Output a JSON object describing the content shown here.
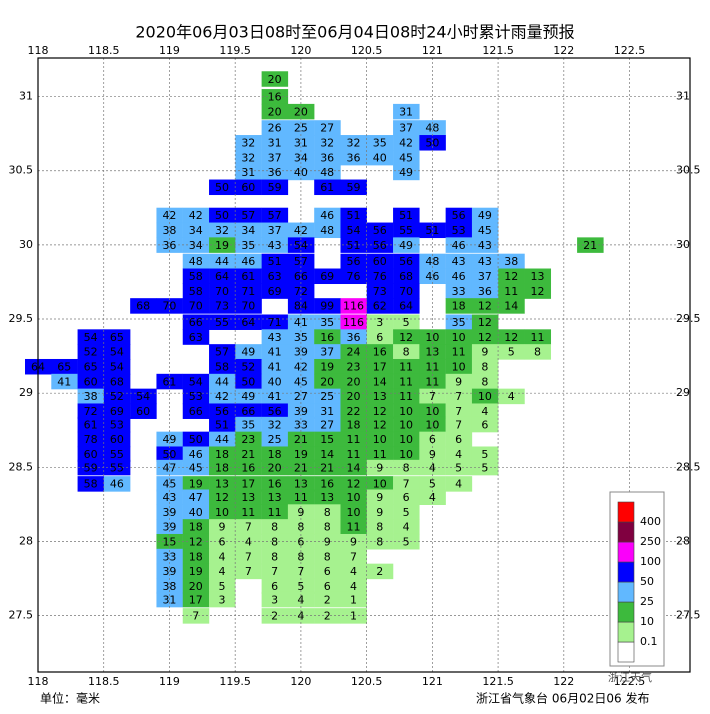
{
  "chart_data": {
    "type": "map",
    "title": "2020年06月03日08时至06月04日08时24小时累计雨量预报",
    "xlim": [
      118,
      122.96
    ],
    "ylim": [
      27.12,
      31.26
    ],
    "xticks": [
      118,
      118.5,
      119,
      119.5,
      120,
      120.5,
      121,
      121.5,
      122,
      122.5
    ],
    "yticks": [
      27.5,
      28,
      28.5,
      29,
      29.5,
      30,
      30.5,
      31
    ],
    "grid": true,
    "legend": {
      "levels": [
        0.1,
        10,
        25,
        50,
        100,
        250,
        400
      ],
      "colors": [
        "#ffffff",
        "#a6f28f",
        "#3dba3d",
        "#61b8ff",
        "#0000fe",
        "#fa00fa",
        "#800040",
        "#ff0000"
      ]
    },
    "grid_lon": [
      118,
      118.2,
      118.4,
      118.6,
      118.8,
      119,
      119.2,
      119.4,
      119.6,
      119.8,
      120,
      120.2,
      120.4,
      120.6,
      120.8,
      121,
      121.2,
      121.4,
      121.6,
      121.8,
      122,
      122.2
    ],
    "rows": [
      {
        "lat": 31.12,
        "values": [
          null,
          null,
          null,
          null,
          null,
          null,
          null,
          null,
          null,
          20,
          null,
          null,
          null,
          null,
          null,
          null,
          null,
          null,
          null,
          null,
          null,
          null
        ]
      },
      {
        "lat": 31.0,
        "values": [
          null,
          null,
          null,
          null,
          null,
          null,
          null,
          null,
          null,
          16,
          null,
          null,
          null,
          null,
          null,
          null,
          null,
          null,
          null,
          null,
          null,
          null
        ]
      },
      {
        "lat": 30.9,
        "values": [
          null,
          null,
          null,
          null,
          null,
          null,
          null,
          null,
          null,
          20,
          20,
          null,
          null,
          null,
          31,
          null,
          null,
          null,
          null,
          null,
          null,
          null
        ]
      },
      {
        "lat": 30.79,
        "values": [
          null,
          null,
          null,
          null,
          null,
          null,
          null,
          null,
          null,
          26,
          25,
          27,
          null,
          null,
          37,
          48,
          null,
          null,
          null,
          null,
          null,
          null
        ]
      },
      {
        "lat": 30.69,
        "values": [
          null,
          null,
          null,
          null,
          null,
          null,
          null,
          null,
          32,
          31,
          31,
          32,
          32,
          35,
          42,
          50,
          null,
          null,
          null,
          null,
          null,
          null
        ]
      },
      {
        "lat": 30.59,
        "values": [
          null,
          null,
          null,
          null,
          null,
          null,
          null,
          null,
          32,
          37,
          34,
          36,
          36,
          40,
          45,
          null,
          null,
          null,
          null,
          null,
          null,
          null
        ]
      },
      {
        "lat": 30.49,
        "values": [
          null,
          null,
          null,
          null,
          null,
          null,
          null,
          null,
          31,
          36,
          40,
          48,
          null,
          null,
          49,
          null,
          null,
          null,
          null,
          null,
          null,
          null
        ]
      },
      {
        "lat": 30.39,
        "values": [
          null,
          null,
          null,
          null,
          null,
          null,
          null,
          50,
          60,
          59,
          null,
          61,
          59,
          null,
          null,
          null,
          null,
          null,
          null,
          null,
          null,
          null
        ]
      },
      {
        "lat": 30.2,
        "values": [
          null,
          null,
          null,
          null,
          null,
          42,
          42,
          50,
          57,
          57,
          null,
          46,
          51,
          null,
          51,
          null,
          56,
          49,
          null,
          null,
          null,
          null
        ]
      },
      {
        "lat": 30.1,
        "values": [
          null,
          null,
          null,
          null,
          null,
          38,
          34,
          32,
          34,
          37,
          42,
          48,
          54,
          56,
          55,
          51,
          53,
          45,
          null,
          null,
          null,
          null
        ]
      },
      {
        "lat": 30.0,
        "values": [
          null,
          null,
          null,
          null,
          null,
          36,
          34,
          19,
          35,
          43,
          54,
          null,
          51,
          56,
          49,
          null,
          46,
          43,
          null,
          null,
          null,
          21
        ]
      },
      {
        "lat": 29.89,
        "values": [
          null,
          null,
          null,
          null,
          null,
          null,
          48,
          44,
          46,
          51,
          57,
          null,
          56,
          60,
          56,
          48,
          43,
          43,
          38,
          null,
          null,
          null
        ]
      },
      {
        "lat": 29.79,
        "values": [
          null,
          null,
          null,
          null,
          null,
          null,
          58,
          64,
          61,
          63,
          66,
          69,
          76,
          76,
          68,
          46,
          46,
          37,
          12,
          13,
          null,
          null
        ]
      },
      {
        "lat": 29.69,
        "values": [
          null,
          null,
          null,
          null,
          null,
          null,
          58,
          70,
          71,
          69,
          72,
          null,
          null,
          73,
          70,
          null,
          33,
          36,
          11,
          12,
          null,
          null
        ]
      },
      {
        "lat": 29.59,
        "values": [
          null,
          null,
          null,
          null,
          68,
          70,
          70,
          73,
          70,
          null,
          84,
          99,
          116,
          62,
          64,
          null,
          18,
          12,
          14,
          null,
          null,
          null
        ]
      },
      {
        "lat": 29.48,
        "values": [
          null,
          null,
          null,
          null,
          null,
          null,
          66,
          55,
          64,
          71,
          41,
          35,
          116,
          3,
          5,
          null,
          35,
          12,
          null,
          null,
          null,
          null
        ]
      },
      {
        "lat": 29.38,
        "values": [
          null,
          null,
          54,
          65,
          null,
          null,
          63,
          null,
          null,
          43,
          35,
          16,
          36,
          6,
          12,
          10,
          10,
          12,
          12,
          11,
          null,
          null
        ]
      },
      {
        "lat": 29.28,
        "values": [
          null,
          null,
          52,
          54,
          null,
          null,
          null,
          57,
          49,
          41,
          39,
          37,
          24,
          16,
          8,
          13,
          11,
          9,
          5,
          8,
          null,
          null
        ]
      },
      {
        "lat": 29.18,
        "values": [
          64,
          65,
          65,
          54,
          null,
          null,
          null,
          58,
          52,
          41,
          42,
          19,
          23,
          17,
          11,
          11,
          10,
          8,
          null,
          null,
          null,
          null
        ]
      },
      {
        "lat": 29.08,
        "values": [
          null,
          41,
          60,
          68,
          null,
          61,
          54,
          44,
          50,
          40,
          45,
          20,
          20,
          14,
          11,
          11,
          9,
          8,
          null,
          null,
          null,
          null
        ]
      },
      {
        "lat": 28.98,
        "values": [
          null,
          null,
          38,
          52,
          54,
          null,
          53,
          42,
          49,
          41,
          27,
          25,
          20,
          13,
          11,
          7,
          7,
          10,
          4,
          null,
          null,
          null
        ]
      },
      {
        "lat": 28.88,
        "values": [
          null,
          null,
          72,
          69,
          60,
          null,
          66,
          56,
          66,
          56,
          39,
          31,
          22,
          12,
          10,
          10,
          7,
          4,
          null,
          null,
          null,
          null
        ]
      },
      {
        "lat": 28.79,
        "values": [
          null,
          null,
          61,
          53,
          null,
          null,
          null,
          51,
          35,
          32,
          33,
          27,
          18,
          12,
          10,
          10,
          7,
          6,
          null,
          null,
          null,
          null
        ]
      },
      {
        "lat": 28.69,
        "values": [
          null,
          null,
          78,
          60,
          null,
          49,
          50,
          44,
          23,
          25,
          21,
          15,
          11,
          10,
          10,
          6,
          6,
          null,
          null,
          null,
          null,
          null
        ]
      },
      {
        "lat": 28.59,
        "values": [
          null,
          null,
          60,
          55,
          null,
          50,
          46,
          18,
          21,
          18,
          19,
          14,
          11,
          11,
          10,
          9,
          4,
          5,
          null,
          null,
          null,
          null
        ]
      },
      {
        "lat": 28.5,
        "values": [
          null,
          null,
          59,
          55,
          null,
          47,
          45,
          18,
          16,
          20,
          21,
          21,
          14,
          9,
          8,
          4,
          5,
          5,
          null,
          null,
          null,
          null
        ]
      },
      {
        "lat": 28.39,
        "values": [
          null,
          null,
          58,
          46,
          null,
          45,
          19,
          13,
          17,
          16,
          13,
          16,
          12,
          10,
          7,
          5,
          4,
          null,
          null,
          null,
          null,
          null
        ]
      },
      {
        "lat": 28.3,
        "values": [
          null,
          null,
          null,
          null,
          null,
          43,
          47,
          12,
          13,
          13,
          11,
          13,
          10,
          9,
          6,
          4,
          null,
          null,
          null,
          null,
          null,
          null
        ]
      },
      {
        "lat": 28.2,
        "values": [
          null,
          null,
          null,
          null,
          null,
          39,
          40,
          10,
          11,
          11,
          9,
          8,
          10,
          9,
          5,
          null,
          null,
          null,
          null,
          null,
          null,
          null
        ]
      },
      {
        "lat": 28.1,
        "values": [
          null,
          null,
          null,
          null,
          null,
          39,
          18,
          9,
          7,
          8,
          8,
          8,
          11,
          8,
          4,
          null,
          null,
          null,
          null,
          null,
          null,
          null
        ]
      },
      {
        "lat": 28.0,
        "values": [
          null,
          null,
          null,
          null,
          null,
          15,
          12,
          6,
          4,
          8,
          6,
          9,
          9,
          8,
          5,
          null,
          null,
          null,
          null,
          null,
          null,
          null
        ]
      },
      {
        "lat": 27.9,
        "values": [
          null,
          null,
          null,
          null,
          null,
          33,
          18,
          4,
          7,
          8,
          8,
          8,
          7,
          null,
          null,
          null,
          null,
          null,
          null,
          null,
          null,
          null
        ]
      },
      {
        "lat": 27.8,
        "values": [
          null,
          null,
          null,
          null,
          null,
          39,
          19,
          4,
          7,
          7,
          7,
          6,
          4,
          2,
          null,
          null,
          null,
          null,
          null,
          null,
          null,
          null
        ]
      },
      {
        "lat": 27.7,
        "values": [
          null,
          null,
          null,
          null,
          null,
          38,
          20,
          5,
          null,
          6,
          5,
          6,
          4,
          null,
          null,
          null,
          null,
          null,
          null,
          null,
          null,
          null
        ]
      },
      {
        "lat": 27.61,
        "values": [
          null,
          null,
          null,
          null,
          null,
          31,
          17,
          3,
          null,
          3,
          4,
          2,
          1,
          null,
          null,
          null,
          null,
          null,
          null,
          null,
          null,
          null
        ]
      },
      {
        "lat": 27.5,
        "values": [
          null,
          null,
          null,
          null,
          null,
          null,
          7,
          null,
          null,
          2,
          4,
          2,
          1,
          null,
          null,
          null,
          null,
          null,
          null,
          null,
          null,
          null
        ]
      }
    ]
  },
  "footer": {
    "unit": "单位：毫米",
    "issuer": "浙江省气象台 06月02日06 发布"
  },
  "watermark": "浙江天气"
}
